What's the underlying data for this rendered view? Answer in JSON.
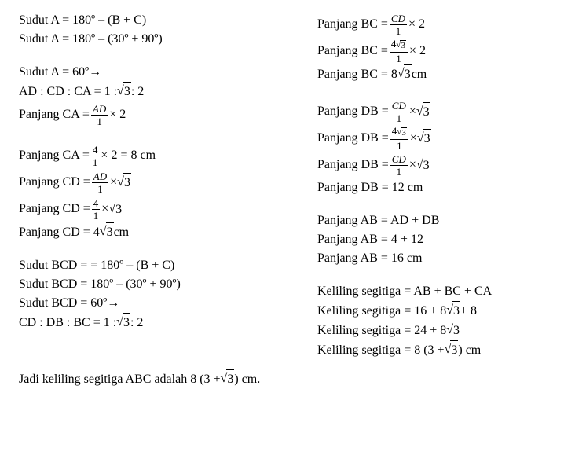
{
  "text_color": "#000000",
  "background_color": "#ffffff",
  "font_family": "Times New Roman",
  "base_fontsize": 16,
  "fraction_fontsize": 13,
  "left": {
    "l1": "Sudut A = 180º – (B + C)",
    "l2": "Sudut A = 180º – (30º + 90º)",
    "l3_pre": "Sudut A = 60º ",
    "arrow": "→",
    "ratio1_pre": "AD : CD : CA = 1 : ",
    "ratio1_sqrt": "3",
    "ratio1_post": " : 2",
    "pca1_pre": "Panjang CA = ",
    "pca1_num": "AD",
    "pca1_den": "1",
    "pca1_post": " × 2",
    "pca2_pre": "Panjang CA = ",
    "pca2_num": "4",
    "pca2_den": "1",
    "pca2_post": " × 2 = 8 cm",
    "pcd1_pre": "Panjang CD = ",
    "pcd1_num": "AD",
    "pcd1_den": "1",
    "pcd1_mid": " × ",
    "pcd1_sqrt": "3",
    "pcd2_pre": "Panjang CD = ",
    "pcd2_num": "4",
    "pcd2_den": "1",
    "pcd2_mid": " × ",
    "pcd2_sqrt": "3",
    "pcd3_pre": "Panjang CD = 4",
    "pcd3_sqrt": "3",
    "pcd3_post": " cm",
    "sbcd1": "Sudut BCD = = 180º – (B + C)",
    "sbcd2": "Sudut BCD = 180º – (30º + 90º)",
    "sbcd3_pre": "Sudut BCD = 60º ",
    "ratio2_pre": "CD : DB : BC = 1 : ",
    "ratio2_sqrt": "3",
    "ratio2_post": " : 2"
  },
  "right": {
    "pbc1_pre": "Panjang BC = ",
    "pbc1_num": "CD",
    "pbc1_den": "1",
    "pbc1_post": " × 2",
    "pbc2_pre": "Panjang BC = ",
    "pbc2_num_a": "4",
    "pbc2_num_sqrt": "3",
    "pbc2_den": "1",
    "pbc2_post": " × 2",
    "pbc3_pre": "Panjang BC = 8",
    "pbc3_sqrt": "3",
    "pbc3_post": " cm",
    "pdb1_pre": "Panjang DB = ",
    "pdb1_num": "CD",
    "pdb1_den": "1",
    "pdb1_mid": " × ",
    "pdb1_sqrt": "3",
    "pdb2_pre": "Panjang DB = ",
    "pdb2_num_a": "4",
    "pdb2_num_sqrt": "3",
    "pdb2_den": "1",
    "pdb2_mid": " × ",
    "pdb2_sqrt": "3",
    "pdb3_pre": "Panjang DB = ",
    "pdb3_num": "CD",
    "pdb3_den": "1",
    "pdb3_mid": " × ",
    "pdb3_sqrt": "3",
    "pdb4": "Panjang DB =  12 cm",
    "pab1": "Panjang AB = AD + DB",
    "pab2": "Panjang AB = 4 + 12",
    "pab3": "Panjang AB = 16 cm",
    "kel1": "Keliling segitiga = AB + BC + CA",
    "kel2_pre": "Keliling segitiga = 16 + 8",
    "kel2_sqrt": "3",
    "kel2_post": " + 8",
    "kel3_pre": "Keliling segitiga = 24 + 8",
    "kel3_sqrt": "3",
    "kel4_pre": "Keliling segitiga = 8 (3 + ",
    "kel4_sqrt": "3",
    "kel4_post": " ) cm"
  },
  "bottom_pre": "Jadi keliling segitiga ABC adalah 8 (3 + ",
  "bottom_sqrt": "3",
  "bottom_post": " ) cm."
}
